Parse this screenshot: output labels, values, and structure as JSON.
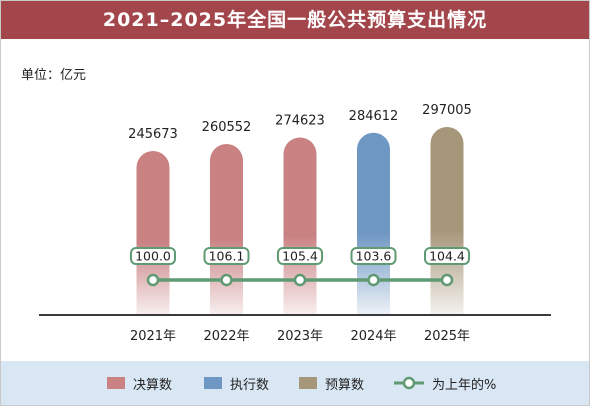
{
  "title": "2021–2025年全国一般公共预算支出情况",
  "unit": "单位：亿元",
  "colors": {
    "title_bg": "#a3464c",
    "final_accounts": "#c98182",
    "execution": "#6f97c3",
    "budget": "#a6967a",
    "growth_line": "#5f9a73",
    "legend_bg": "#d9e6f3"
  },
  "chart_data": {
    "type": "bar",
    "categories": [
      "2021年",
      "2022年",
      "2023年",
      "2024年",
      "2025年"
    ],
    "values": [
      245673,
      260552,
      274623,
      284612,
      297005
    ],
    "bar_types": [
      "final",
      "final",
      "final",
      "execution",
      "budget"
    ],
    "growth_series": {
      "name": "为上年的%",
      "values": [
        "100.0",
        "106.1",
        "105.4",
        "103.6",
        "104.4"
      ]
    },
    "ylim": [
      0,
      320000
    ]
  },
  "legend": [
    {
      "label": "决算数",
      "color": "#c98182",
      "kind": "swatch"
    },
    {
      "label": "执行数",
      "color": "#6f97c3",
      "kind": "swatch"
    },
    {
      "label": "预算数",
      "color": "#a6967a",
      "kind": "swatch"
    },
    {
      "label": "为上年的%",
      "color": "#5f9a73",
      "kind": "line"
    }
  ]
}
